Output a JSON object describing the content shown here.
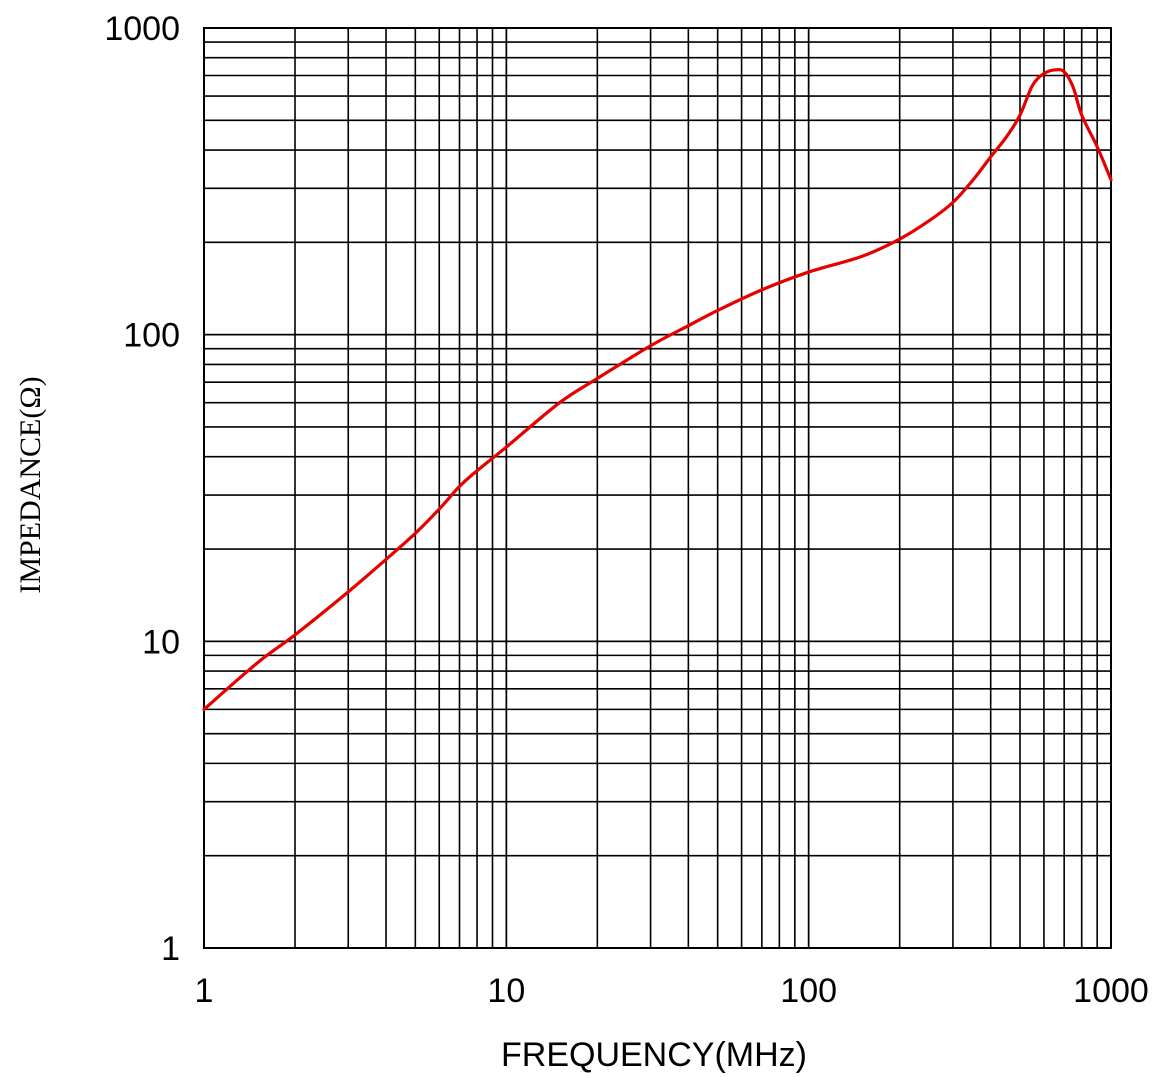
{
  "chart_data": {
    "type": "line",
    "title": "",
    "xlabel": "FREQUENCY(MHz)",
    "ylabel": "IMPEDANCE(Ω)",
    "x_scale": "log",
    "y_scale": "log",
    "xlim": [
      1,
      1000
    ],
    "ylim": [
      1,
      1000
    ],
    "x_ticks": [
      "1",
      "10",
      "100",
      "1000"
    ],
    "y_ticks": [
      "1",
      "10",
      "100",
      "1000"
    ],
    "grid": true,
    "legend": "none",
    "series": [
      {
        "color": "#e60000",
        "x": [
          1,
          1.5,
          2,
          3,
          4,
          5,
          6,
          7,
          8,
          10,
          15,
          20,
          30,
          40,
          50,
          70,
          100,
          150,
          200,
          250,
          300,
          350,
          400,
          450,
          500,
          550,
          600,
          650,
          700,
          750,
          800,
          900,
          1000
        ],
        "y": [
          6,
          8.5,
          10.5,
          14.5,
          18.5,
          22.5,
          27,
          32,
          36,
          43,
          60,
          72,
          92,
          107,
          120,
          140,
          160,
          180,
          205,
          235,
          270,
          320,
          380,
          440,
          520,
          650,
          710,
          730,
          720,
          640,
          520,
          410,
          320
        ]
      }
    ]
  }
}
